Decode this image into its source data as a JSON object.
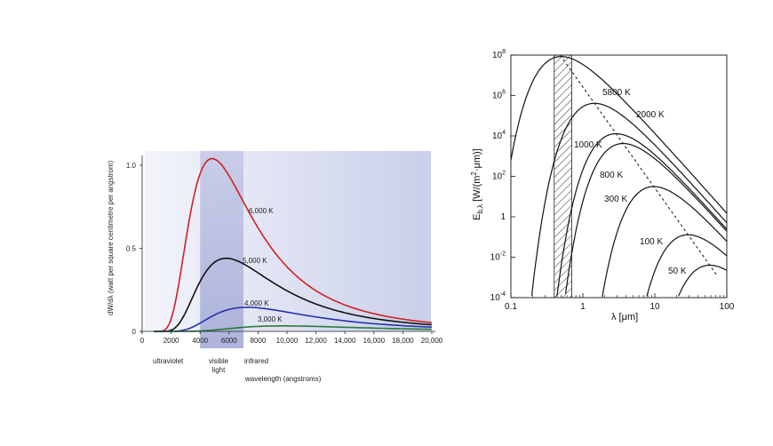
{
  "chart_data": [
    {
      "type": "line",
      "title": "",
      "xlabel": "wavelength (angstroms)",
      "ylabel": "dW/dλ (watt per square centimetre per angstrom)",
      "xlim": [
        0,
        20000
      ],
      "ylim": [
        0,
        1.1
      ],
      "x_ticks": [
        "0",
        "2000",
        "4000",
        "6000",
        "8000",
        "10,000",
        "12,000",
        "14,000",
        "16,000",
        "18,000",
        "20,000"
      ],
      "y_ticks": [
        "0",
        "0.5",
        "1.0"
      ],
      "series": [
        {
          "name": "6,000 K",
          "color": "#d02020",
          "peak_x": 4830,
          "peak_y": 1.04
        },
        {
          "name": "5,000 K",
          "color": "#111111",
          "peak_x": 5800,
          "peak_y": 0.44
        },
        {
          "name": "4,000 K",
          "color": "#2233aa",
          "peak_x": 7250,
          "peak_y": 0.145
        },
        {
          "name": "3,000 K",
          "color": "#2a7a3a",
          "peak_x": 9700,
          "peak_y": 0.033
        }
      ],
      "visible_band": [
        4000,
        7000
      ],
      "bands": {
        "ultraviolet": "ultraviolet",
        "visible": "visible light",
        "infrared": "infrared"
      }
    },
    {
      "type": "line",
      "title": "",
      "xlabel": "λ [μm]",
      "ylabel": "Eb,λ [W/(m²·μm)]",
      "xscale": "log",
      "yscale": "log",
      "xlim": [
        0.1,
        100
      ],
      "ylim": [
        0.0001,
        100000000
      ],
      "x_ticks": [
        "0.1",
        "1",
        "10",
        "100"
      ],
      "y_ticks": [
        "10-4",
        "10-2",
        "1",
        "102",
        "104",
        "106",
        "108"
      ],
      "series": [
        {
          "name": "5800 K",
          "temperature": 5800
        },
        {
          "name": "2000 K",
          "temperature": 2000
        },
        {
          "name": "1000 K",
          "temperature": 1000
        },
        {
          "name": "800 K",
          "temperature": 800
        },
        {
          "name": "300 K",
          "temperature": 300
        },
        {
          "name": "100 K",
          "temperature": 100
        },
        {
          "name": "50 K",
          "temperature": 50
        }
      ],
      "wien_line": {
        "style": "dashed",
        "constant_um_K": 2898
      },
      "visible_band_um": [
        0.4,
        0.7
      ]
    }
  ]
}
